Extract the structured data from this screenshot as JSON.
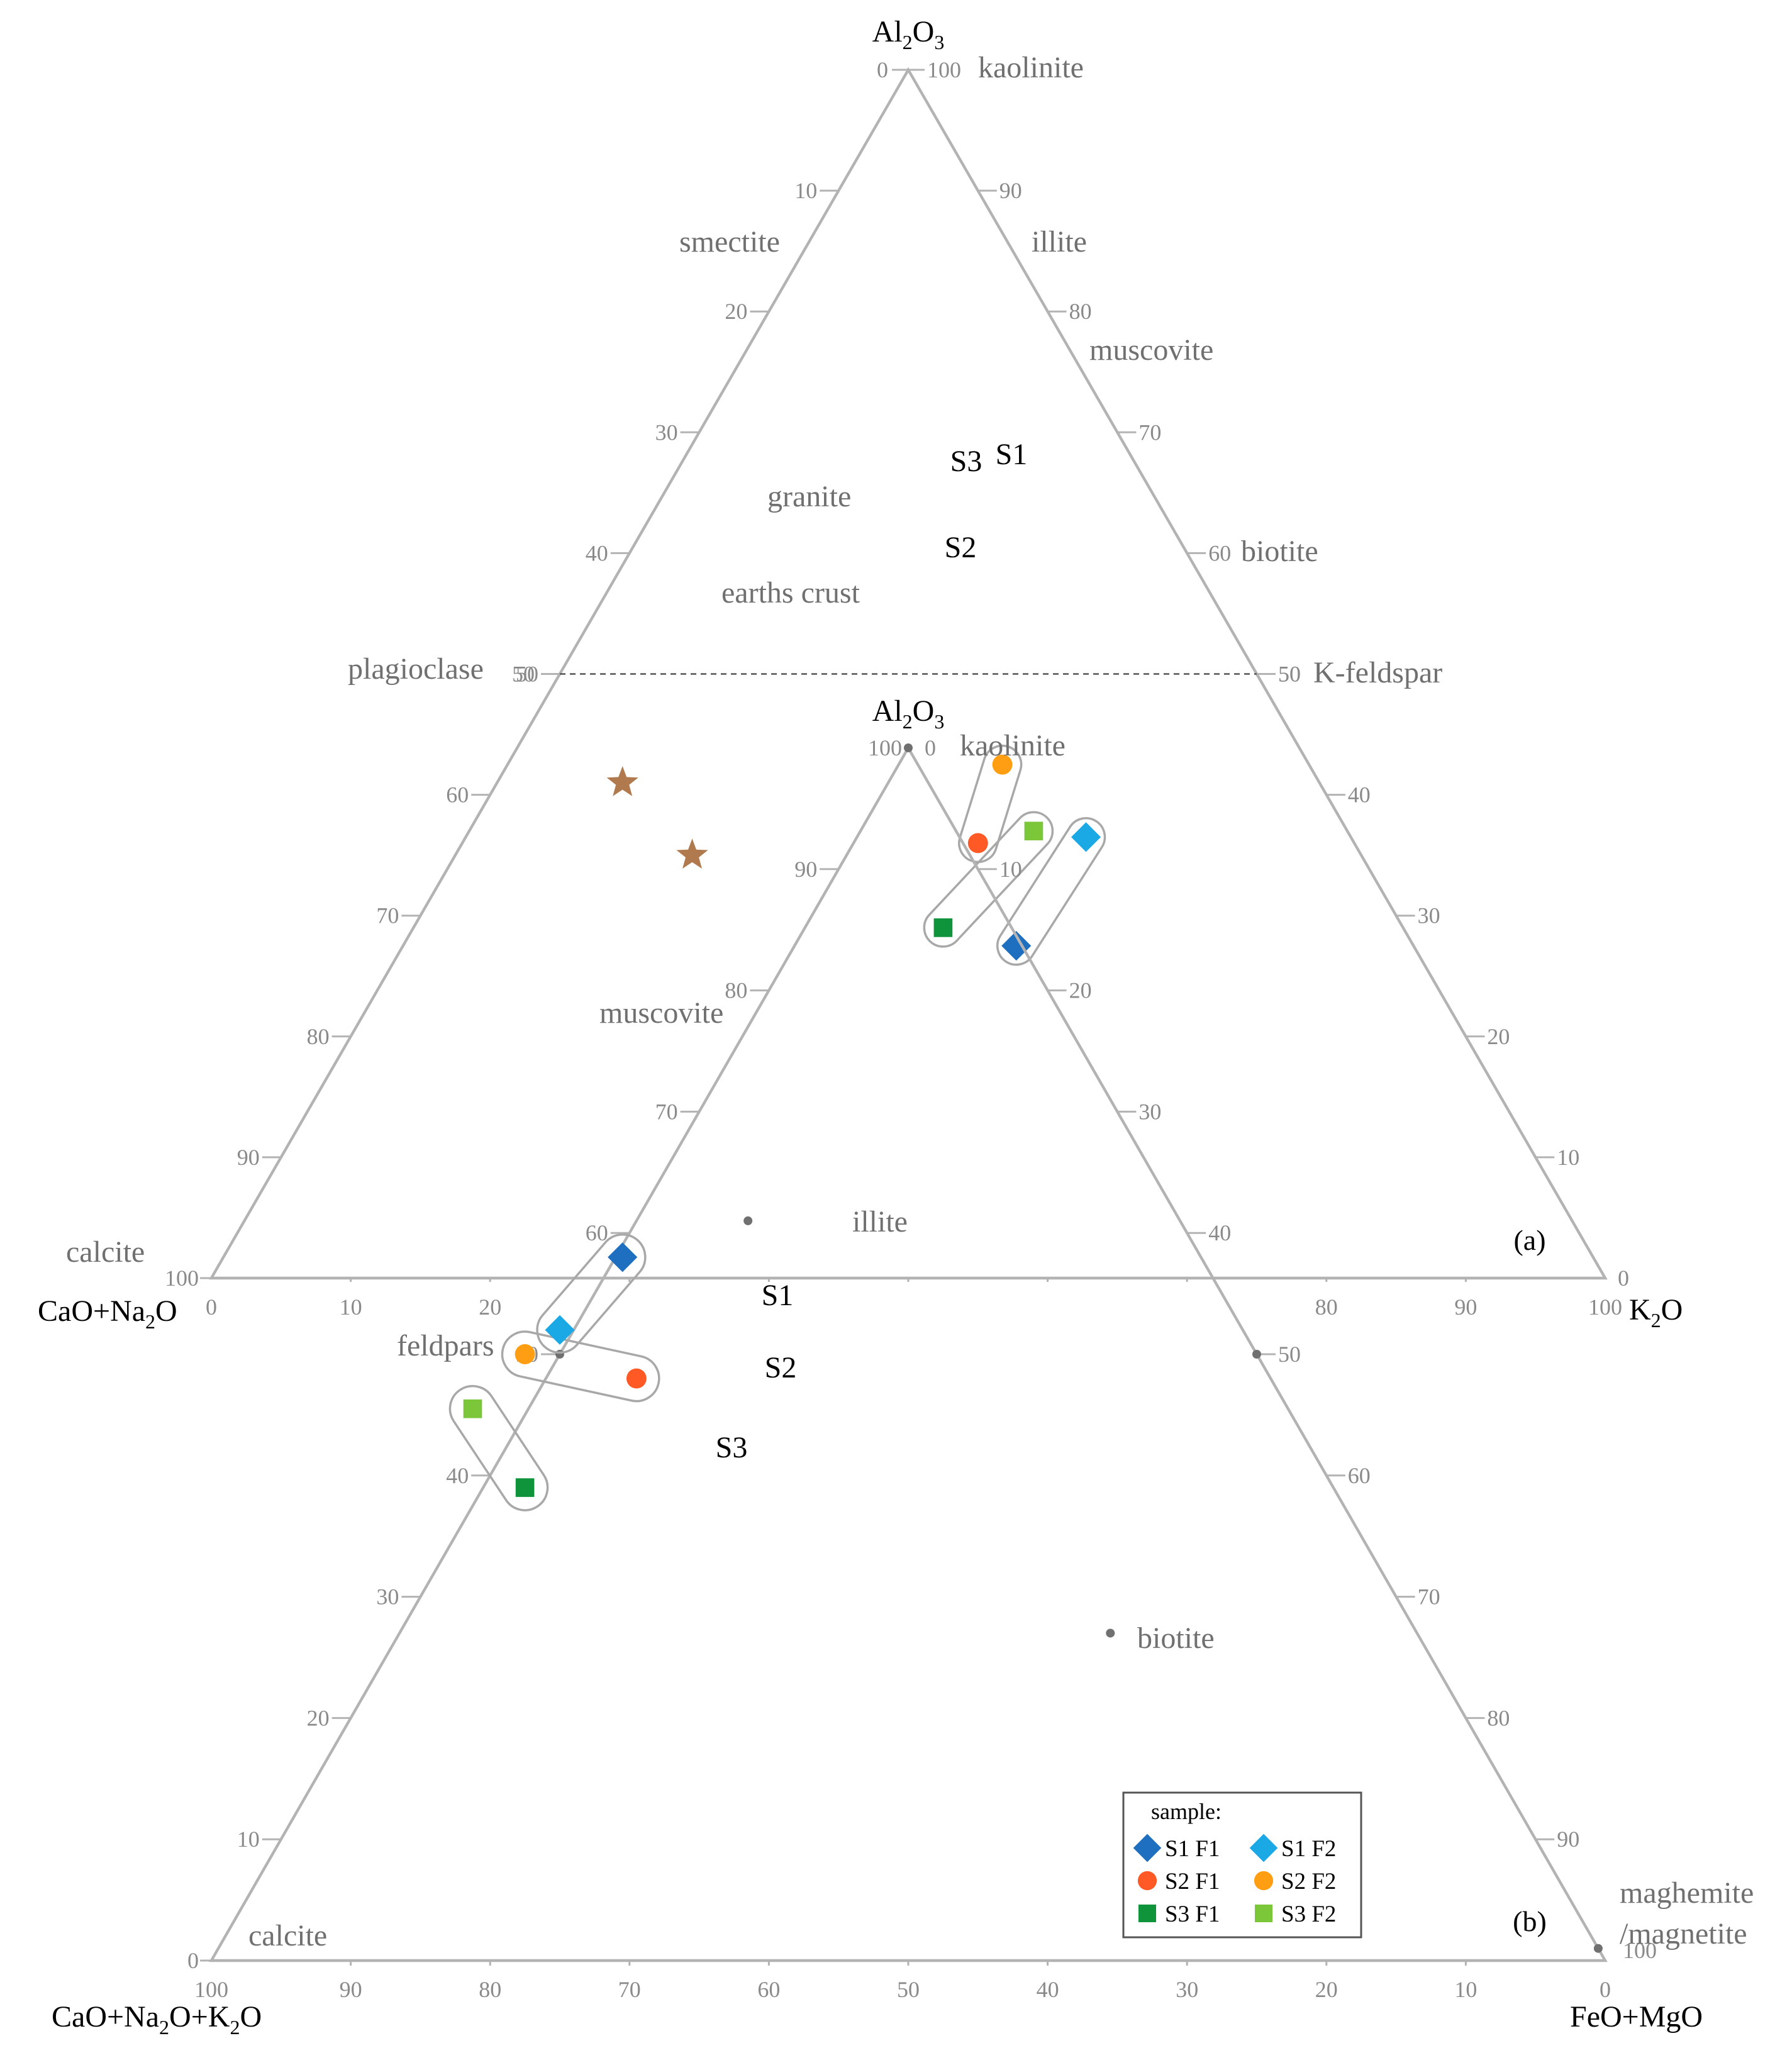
{
  "chart_data": [
    {
      "type": "scatter",
      "subtype": "ternary",
      "panel_label": "(a)",
      "apex_labels": {
        "top": {
          "main": "Al",
          "sub1": "2",
          "mid": "O",
          "sub2": "3"
        },
        "left": {
          "main": "CaO+Na",
          "sub1": "2",
          "mid": "O"
        },
        "right": {
          "main": "K",
          "sub1": "2",
          "mid": "O"
        }
      },
      "tick_values": [
        0,
        10,
        20,
        30,
        40,
        50,
        60,
        70,
        80,
        90,
        100
      ],
      "reference_line": {
        "component": "Al2O3",
        "value": 50,
        "style": "dashed"
      },
      "mineral_labels": {
        "kaolinite": "kaolinite",
        "smectite": "smectite",
        "illite": "illite",
        "muscovite": "muscovite",
        "biotite": "biotite",
        "plagioclase": "plagioclase",
        "kfeldspar": "K-feldspar",
        "calcite": "calcite"
      },
      "reference_points": [
        {
          "name": "granite",
          "label": "granite",
          "marker": "star",
          "color": "#b07a4e",
          "Al2O3": 35,
          "K2O": 17
        },
        {
          "name": "earths-crust",
          "label": "earths crust",
          "marker": "star",
          "color": "#b07a4e",
          "Al2O3": 41,
          "K2O": 9
        }
      ],
      "points": [
        {
          "series": "S1 F1",
          "Al2O3": 27.5,
          "K2O": 44
        },
        {
          "series": "S1 F2",
          "Al2O3": 36.5,
          "K2O": 44.5
        },
        {
          "series": "S2 F1",
          "Al2O3": 36,
          "K2O": 37
        },
        {
          "series": "S2 F2",
          "Al2O3": 42.5,
          "K2O": 35.5
        },
        {
          "series": "S3 F1",
          "Al2O3": 29,
          "K2O": 38
        },
        {
          "series": "S3 F2",
          "Al2O3": 37,
          "K2O": 40.5
        }
      ],
      "groups": [
        {
          "label": "S1",
          "members": [
            "S1 F1",
            "S1 F2"
          ]
        },
        {
          "label": "S2",
          "members": [
            "S2 F1",
            "S2 F2"
          ]
        },
        {
          "label": "S3",
          "members": [
            "S3 F1",
            "S3 F2"
          ]
        }
      ]
    },
    {
      "type": "scatter",
      "subtype": "ternary",
      "panel_label": "(b)",
      "apex_labels": {
        "top": {
          "main": "Al",
          "sub1": "2",
          "mid": "O",
          "sub2": "3"
        },
        "left": {
          "main": "CaO+Na",
          "sub1": "2",
          "mid": "O+K",
          "sub2": "2",
          "end": "O"
        },
        "right": {
          "main": "FeO+MgO"
        }
      },
      "tick_values": [
        0,
        10,
        20,
        30,
        40,
        50,
        60,
        70,
        80,
        90,
        100
      ],
      "mineral_labels": {
        "kaolinite": "kaolinite",
        "muscovite": "muscovite",
        "illite": "illite",
        "feldpars": "feldpars",
        "biotite": "biotite",
        "calcite": "calcite",
        "maghemite1": "maghemite",
        "maghemite2": "/magnetite"
      },
      "reference_points": [
        {
          "name": "kaolinite",
          "Al2O3": 100,
          "FeOMgO": 0
        },
        {
          "name": "illite",
          "Al2O3": 61,
          "FeOMgO": 8
        },
        {
          "name": "feldpars",
          "Al2O3": 50,
          "FeOMgO": 0
        },
        {
          "name": "biotite",
          "Al2O3": 27,
          "FeOMgO": 51
        },
        {
          "name": "k-side-50",
          "Al2O3": 50,
          "FeOMgO": 50
        },
        {
          "name": "maghemite-magnetite",
          "Al2O3": 1,
          "FeOMgO": 99
        }
      ],
      "points": [
        {
          "series": "S1 F1",
          "Al2O3": 58,
          "FeOMgO": 0.5
        },
        {
          "series": "S1 F2",
          "Al2O3": 52,
          "FeOMgO": -1
        },
        {
          "series": "S2 F1",
          "Al2O3": 48,
          "FeOMgO": 6.5
        },
        {
          "series": "S2 F2",
          "Al2O3": 50,
          "FeOMgO": -2.5
        },
        {
          "series": "S3 F1",
          "Al2O3": 39,
          "FeOMgO": 3
        },
        {
          "series": "S3 F2",
          "Al2O3": 45.5,
          "FeOMgO": -4
        }
      ],
      "groups": [
        {
          "label": "S1",
          "members": [
            "S1 F1",
            "S1 F2"
          ]
        },
        {
          "label": "S2",
          "members": [
            "S2 F1",
            "S2 F2"
          ]
        },
        {
          "label": "S3",
          "members": [
            "S3 F1",
            "S3 F2"
          ]
        }
      ]
    }
  ],
  "legend": {
    "title": "sample:",
    "placement": "bottom-right",
    "items": [
      {
        "label": "S1 F1",
        "marker": "diamond",
        "color": "#1f6fc0"
      },
      {
        "label": "S1 F2",
        "marker": "diamond",
        "color": "#1ba9e6"
      },
      {
        "label": "S2 F1",
        "marker": "circle",
        "color": "#ff5a26"
      },
      {
        "label": "S2 F2",
        "marker": "circle",
        "color": "#ff9e12"
      },
      {
        "label": "S3 F1",
        "marker": "square",
        "color": "#10943b"
      },
      {
        "label": "S3 F2",
        "marker": "square",
        "color": "#7cc63a"
      }
    ]
  }
}
